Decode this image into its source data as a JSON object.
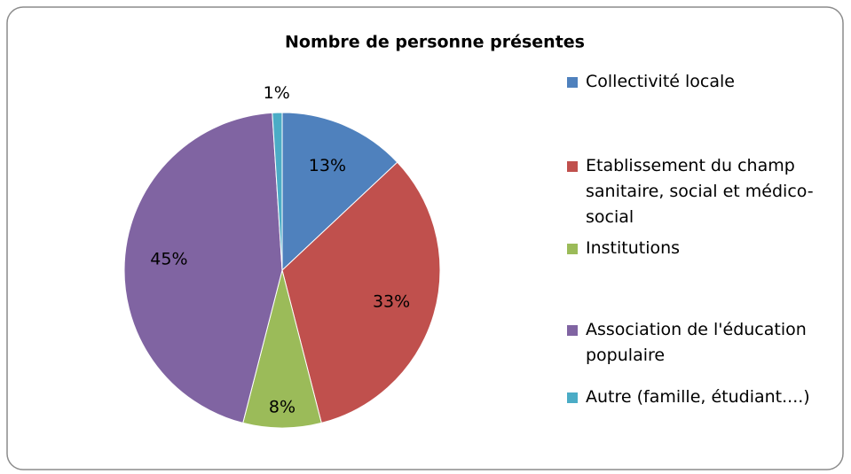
{
  "chart_data": {
    "type": "pie",
    "title": "Nombre de personne présentes",
    "categories": [
      "Collectivité locale",
      "Etablissement du champ sanitaire, social et médico-social",
      "Institutions",
      "Association de l'éducation populaire",
      "Autre (famille, étudiant....)"
    ],
    "values": [
      13,
      33,
      8,
      45,
      1
    ],
    "value_labels": [
      "13%",
      "33%",
      "8%",
      "45%",
      "1%"
    ],
    "colors": [
      "#4f81bd",
      "#c0504d",
      "#9bbb59",
      "#8064a2",
      "#4bacc6"
    ],
    "legend": "right"
  }
}
